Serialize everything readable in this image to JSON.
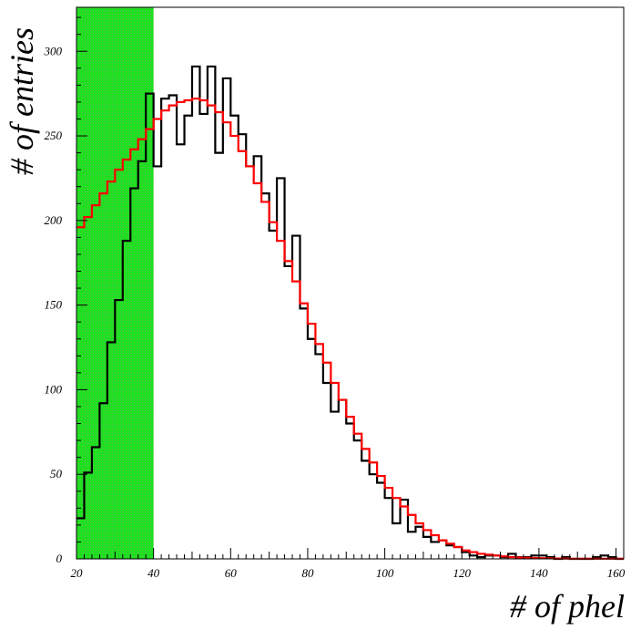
{
  "chart_data": {
    "type": "histogram",
    "xlabel": "# of phel",
    "ylabel": "# of entries",
    "xlim": [
      20,
      162
    ],
    "ylim": [
      0,
      326
    ],
    "x_ticks": [
      20,
      40,
      60,
      80,
      100,
      120,
      140,
      160
    ],
    "y_ticks": [
      0,
      50,
      100,
      150,
      200,
      250,
      300
    ],
    "bin_width": 2,
    "bin_start": 20,
    "shaded_region": {
      "x_range": [
        20,
        40
      ],
      "color": "#1ee01e"
    },
    "series": [
      {
        "style": "step",
        "color": "#000000",
        "values": [
          24,
          51,
          66,
          92,
          128,
          153,
          188,
          219,
          235,
          275,
          232,
          272,
          274,
          245,
          262,
          291,
          263,
          291,
          240,
          284,
          262,
          251,
          232,
          238,
          216,
          194,
          225,
          173,
          191,
          148,
          130,
          121,
          104,
          87,
          94,
          80,
          70,
          58,
          50,
          45,
          36,
          21,
          35,
          16,
          19,
          13,
          10,
          11,
          8,
          7,
          4,
          2,
          1,
          2,
          2,
          1,
          3,
          1,
          1,
          2,
          2,
          1,
          0,
          1,
          0,
          0,
          0,
          1,
          2,
          1,
          0
        ]
      },
      {
        "style": "step",
        "color": "#ff0000",
        "values": [
          196,
          202,
          209,
          216,
          223,
          230,
          236,
          242,
          248,
          254,
          260,
          265,
          268,
          270,
          271,
          272,
          271,
          268,
          264,
          258,
          250,
          241,
          232,
          222,
          211,
          199,
          188,
          176,
          164,
          151,
          139,
          127,
          116,
          104,
          94,
          84,
          74,
          65,
          57,
          49,
          42,
          36,
          31,
          26,
          21,
          17,
          14,
          11,
          9,
          7,
          5,
          4,
          3,
          2.5,
          2,
          1.5,
          1,
          0.8,
          0.6,
          0.5,
          0.4,
          0.3,
          0.2,
          0.2,
          0.1,
          0.1,
          0.1,
          0.1,
          0.1,
          0.1,
          0.1
        ]
      }
    ]
  }
}
